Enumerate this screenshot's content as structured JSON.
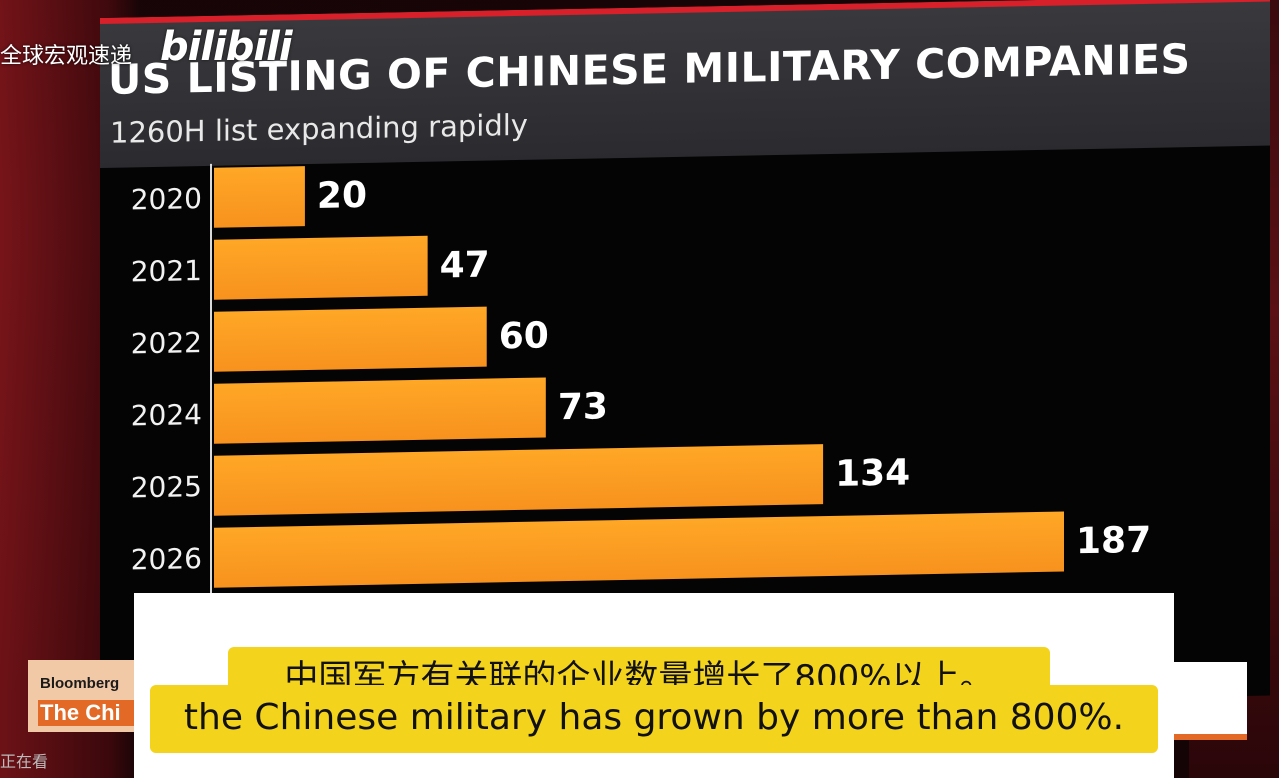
{
  "overlay": {
    "watermark_text": "全球宏观速递",
    "platform_logo": "bilibili",
    "broadcaster": "Bloomberg",
    "show_name_fragment": "The Chi",
    "viewer_status": "正在看"
  },
  "subtitles": {
    "chinese": "中国军方有关联的企业数量增长了800%以上。",
    "english": "the Chinese military has grown by more than 800%."
  },
  "colors": {
    "bar": "#f7921e",
    "bar_highlight": "#ffa726",
    "background": "#050404",
    "header": "#2f2f33",
    "accent_red": "#d7202a",
    "subtitle_highlight": "#f3d31c"
  },
  "chart_data": {
    "type": "bar",
    "orientation": "horizontal",
    "title": "US LISTING OF CHINESE MILITARY COMPANIES",
    "subtitle": "1260H list expanding rapidly",
    "categories": [
      "2020",
      "2021",
      "2022",
      "2024",
      "2025",
      "2026"
    ],
    "values": [
      20,
      47,
      60,
      73,
      134,
      187
    ],
    "data_labels": [
      "20",
      "47",
      "60",
      "73",
      "134",
      "187"
    ],
    "xlabel": "",
    "ylabel": "",
    "xlim": [
      0,
      187
    ],
    "grid": false,
    "legend": "none"
  }
}
